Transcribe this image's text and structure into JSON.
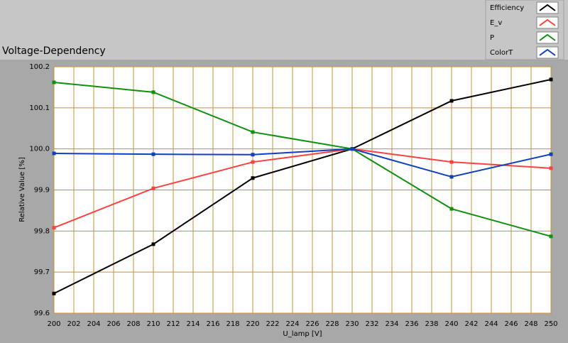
{
  "chart_data": {
    "type": "line",
    "title": "Voltage-Dependency",
    "x_label": "U_lamp [V]",
    "y_label": "Relative Value [%]",
    "x": [
      200,
      210,
      220,
      230,
      240,
      250
    ],
    "series": [
      {
        "name": "Efficiency",
        "color": "#000000",
        "values": [
          99.648,
          99.768,
          99.929,
          100.0,
          100.117,
          100.169
        ]
      },
      {
        "name": "E_v",
        "color": "#ff4040",
        "values": [
          99.808,
          99.904,
          99.968,
          100.0,
          99.968,
          99.953
        ]
      },
      {
        "name": "P",
        "color": "#109010",
        "values": [
          100.162,
          100.138,
          100.041,
          100.0,
          99.854,
          99.787
        ]
      },
      {
        "name": "ColorT",
        "color": "#1040c0",
        "values": [
          99.989,
          99.987,
          99.986,
          100.0,
          99.932,
          99.987
        ]
      }
    ],
    "xlim": [
      200,
      250
    ],
    "xticks": [
      200,
      202,
      204,
      206,
      208,
      210,
      212,
      214,
      216,
      218,
      220,
      222,
      224,
      226,
      228,
      230,
      232,
      234,
      236,
      238,
      240,
      242,
      244,
      246,
      248,
      250
    ],
    "ylim": [
      99.6,
      100.2
    ],
    "yticks": [
      99.6,
      99.7,
      99.8,
      99.9,
      {
        "value": 100.0,
        "label": "100.0"
      },
      100.1,
      100.2
    ],
    "grid": true,
    "grid_color": "#c89030",
    "legend": "top-right"
  }
}
